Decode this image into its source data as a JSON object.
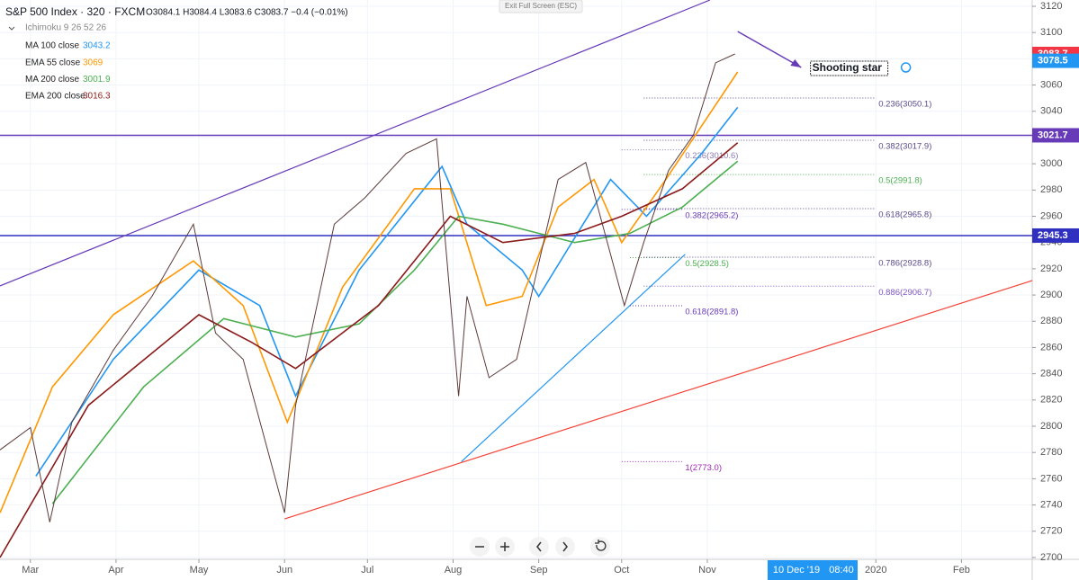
{
  "title": "Exit Full Screen (ESC)",
  "chart_data": {
    "type": "line",
    "title": "S&P 500 Index · 320 · FXCM",
    "ohlc": "O3084.1 H3084.4 L3083.6 C3083.7 −0.4 (−0.01%)",
    "study": "Ichimoku 9 26 52 26",
    "xlim": [
      -11,
      362.6
    ],
    "ylim": [
      2698.6,
      3124.8
    ],
    "xticks": [
      {
        "value": 0,
        "label": "Mar"
      },
      {
        "value": 31,
        "label": "Apr"
      },
      {
        "value": 61,
        "label": "May"
      },
      {
        "value": 92,
        "label": "Jun"
      },
      {
        "value": 122,
        "label": "Jul"
      },
      {
        "value": 153,
        "label": "Aug"
      },
      {
        "value": 184,
        "label": "Sep"
      },
      {
        "value": 214,
        "label": "Oct"
      },
      {
        "value": 245,
        "label": "Nov"
      },
      {
        "value": 306,
        "label": "2020"
      },
      {
        "value": 337,
        "label": "Feb"
      }
    ],
    "yticks": [
      2700,
      2720,
      2740,
      2760,
      2780,
      2800,
      2820,
      2840,
      2860,
      2880,
      2900,
      2920,
      2940,
      2960,
      2980,
      3000,
      3020,
      3040,
      3060,
      3080,
      3100,
      3120
    ],
    "price": {
      "color": "#5d3a3a",
      "x": [
        -11,
        0,
        7,
        15,
        30,
        44,
        59,
        67,
        77,
        92,
        96,
        110,
        121,
        136,
        147,
        155,
        158,
        166,
        176,
        182,
        191,
        201,
        215,
        222,
        231,
        240,
        248,
        255
      ],
      "values": [
        2782,
        2799,
        2727,
        2803,
        2858,
        2899,
        2954,
        2871,
        2851,
        2734,
        2816,
        2954,
        2974,
        3008,
        3019,
        2823,
        2899,
        2837,
        2851,
        2906,
        2988,
        3001,
        2892,
        2940,
        2995,
        3022,
        3077,
        3083.7
      ]
    },
    "series": [
      {
        "name": "MA 100 close",
        "last": 3043.2,
        "color": "#2196f3",
        "x": [
          2,
          30,
          61,
          83,
          96,
          119,
          149,
          158,
          178,
          184,
          210,
          223,
          243,
          256
        ],
        "values": [
          2762,
          2851,
          2919,
          2892,
          2823,
          2919,
          2998,
          2954,
          2919,
          2899,
          2988,
          2960,
          3008,
          3043
        ]
      },
      {
        "name": "EMA 55 close",
        "last": 3069.0,
        "color": "#ff9800",
        "x": [
          -11,
          8,
          30,
          59,
          77,
          93,
          113,
          139,
          152,
          165,
          178,
          191,
          204,
          214,
          230,
          243,
          256
        ],
        "values": [
          2734,
          2830,
          2885,
          2926,
          2892,
          2803,
          2906,
          2981,
          2981,
          2892,
          2899,
          2967,
          2988,
          2940,
          2988,
          3029,
          3070
        ]
      },
      {
        "name": "MA 200 close",
        "last": 3001.9,
        "color": "#4caf50",
        "x": [
          8,
          41,
          70,
          96,
          119,
          139,
          155,
          171,
          197,
          217,
          236,
          256
        ],
        "values": [
          2741,
          2830,
          2882,
          2868,
          2878,
          2919,
          2960,
          2954,
          2940,
          2947,
          2967,
          3002
        ]
      },
      {
        "name": "EMA 200 close",
        "last": 3016.3,
        "color": "#8b1a1a",
        "x": [
          -11,
          21,
          61,
          80,
          96,
          126,
          152,
          171,
          197,
          214,
          236,
          256
        ],
        "values": [
          2700,
          2816,
          2885,
          2864,
          2844,
          2892,
          2960,
          2940,
          2947,
          2960,
          2981,
          3016
        ]
      }
    ],
    "trendlines": [
      {
        "color": "#673ab7",
        "x": [
          -11,
          246
        ],
        "values": [
          2907,
          3124.8
        ]
      },
      {
        "color": "#f44336",
        "x": [
          92,
          362.6
        ],
        "values": [
          2729.4,
          2911
        ]
      },
      {
        "color": "#2196f3",
        "x": [
          156,
          237
        ],
        "values": [
          2773,
          2931
        ]
      }
    ],
    "hlines": [
      {
        "value": 3021.7,
        "color": "#673ab7"
      },
      {
        "value": 2945.3,
        "color": "#3030c0"
      }
    ],
    "price_tags": [
      {
        "value": 3083.7,
        "color": "#f23645"
      },
      {
        "value": 3078.5,
        "color": "#2196f3"
      }
    ],
    "fibs": [
      {
        "label": "0.236(3010.6)",
        "value": 3010.6,
        "x": [
          214,
          236
        ],
        "color": "#8b7bb5"
      },
      {
        "label": "0.382(2965.2)",
        "value": 2965.2,
        "x": [
          214,
          236
        ],
        "color": "#673ab7"
      },
      {
        "label": "0.5(2928.5)",
        "value": 2928.5,
        "x": [
          217,
          236
        ],
        "color": "#4caf50"
      },
      {
        "label": "0.618(2891.8)",
        "value": 2891.8,
        "x": [
          217,
          236
        ],
        "color": "#673ab7"
      },
      {
        "label": "1(2773.0)",
        "value": 2773.0,
        "x": [
          214,
          236
        ],
        "color": "#9c27b0"
      },
      {
        "label": "0.236(3050.1)",
        "value": 3050.1,
        "x": [
          222,
          306
        ],
        "color": "#5b4b8a"
      },
      {
        "label": "0.382(3017.9)",
        "value": 3017.9,
        "x": [
          222,
          306
        ],
        "color": "#5b4b8a"
      },
      {
        "label": "0.5(2991.8)",
        "value": 2991.8,
        "x": [
          222,
          306
        ],
        "color": "#4caf50"
      },
      {
        "label": "0.618(2965.8)",
        "value": 2965.8,
        "x": [
          222,
          306
        ],
        "color": "#5b4b8a"
      },
      {
        "label": "0.786(2928.8)",
        "value": 2928.8,
        "x": [
          222,
          306
        ],
        "color": "#5b4b8a"
      },
      {
        "label": "0.886(2906.7)",
        "value": 2906.7,
        "x": [
          222,
          306
        ],
        "color": "#7e57c2"
      }
    ],
    "annotation": {
      "text": "Shooting star",
      "x": 283,
      "y": 3072.7,
      "arrow": {
        "x": [
          256,
          279
        ],
        "values": [
          3100.8,
          3073.4
        ]
      }
    },
    "crosshair": {
      "date": "10 Dec '19",
      "time": "08:40"
    }
  }
}
